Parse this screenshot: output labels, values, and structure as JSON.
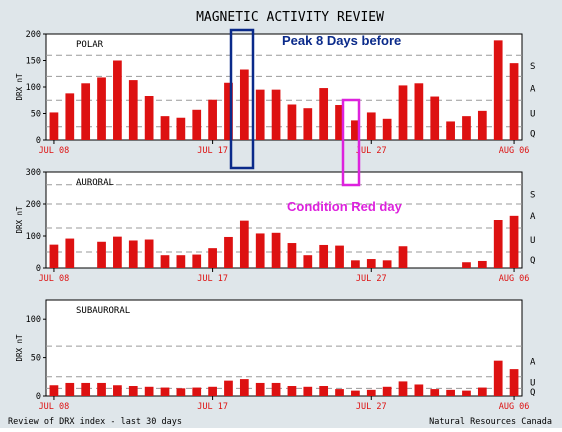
{
  "title": "MAGNETIC ACTIVITY REVIEW",
  "footer_left": "Review of DRX index - last 30 days",
  "footer_right": "Natural Resources Canada",
  "colors": {
    "frame_bg": "#dfe6ea",
    "plot_bg": "#ffffff",
    "bar": "#dd1111",
    "grid": "#9a9a9a",
    "peak_box": "#0a2a8a",
    "red_day_box": "#dd22dd",
    "peak_text": "#0a2a8a",
    "red_day_text": "#dd22dd"
  },
  "annotations": {
    "peak_label": "Peak 8 Days before",
    "red_day_label": "Condition Red day"
  },
  "chart_data": [
    {
      "type": "bar",
      "panel_label": "POLAR",
      "ylabel": "DRX nT",
      "ylim": [
        0,
        200
      ],
      "yticks": [
        "0",
        "50",
        "100",
        "150",
        "200"
      ],
      "level_labels": [
        "Q",
        "U",
        "A",
        "S"
      ],
      "level_thresholds": [
        25,
        75,
        120,
        160
      ],
      "x_tick_labels": [
        "JUL 08",
        "JUL 17",
        "JUL 27",
        "AUG 06"
      ],
      "values": [
        52,
        88,
        107,
        118,
        150,
        113,
        83,
        45,
        42,
        57,
        76,
        108,
        133,
        95,
        95,
        67,
        60,
        98,
        66,
        37,
        52,
        40,
        103,
        107,
        82,
        35,
        45,
        55,
        188,
        145
      ]
    },
    {
      "type": "bar",
      "panel_label": "AURORAL",
      "ylabel": "DRX nT",
      "ylim": [
        0,
        300
      ],
      "yticks": [
        "0",
        "100",
        "200",
        "300"
      ],
      "level_labels": [
        "Q",
        "U",
        "A",
        "S"
      ],
      "level_thresholds": [
        50,
        125,
        200,
        260
      ],
      "x_tick_labels": [
        "JUL 08",
        "JUL 17",
        "JUL 27",
        "AUG 06"
      ],
      "values": [
        73,
        92,
        0,
        82,
        98,
        86,
        89,
        40,
        40,
        42,
        62,
        97,
        148,
        108,
        110,
        78,
        40,
        72,
        70,
        24,
        28,
        24,
        68,
        0,
        0,
        0,
        18,
        22,
        150,
        163
      ]
    },
    {
      "type": "bar",
      "panel_label": "SUBAURORAL",
      "ylabel": "DRX nT",
      "ylim": [
        0,
        125
      ],
      "yticks": [
        "0",
        "50",
        "100"
      ],
      "level_labels": [
        "Q",
        "U",
        "A"
      ],
      "level_thresholds": [
        10,
        25,
        65
      ],
      "x_tick_labels": [
        "JUL 08",
        "JUL 17",
        "JUL 27",
        "AUG 06"
      ],
      "values": [
        14,
        17,
        17,
        17,
        14,
        13,
        12,
        11,
        10,
        11,
        12,
        20,
        22,
        17,
        17,
        13,
        12,
        13,
        9,
        7,
        8,
        12,
        19,
        15,
        9,
        8,
        7,
        11,
        46,
        35
      ]
    }
  ]
}
